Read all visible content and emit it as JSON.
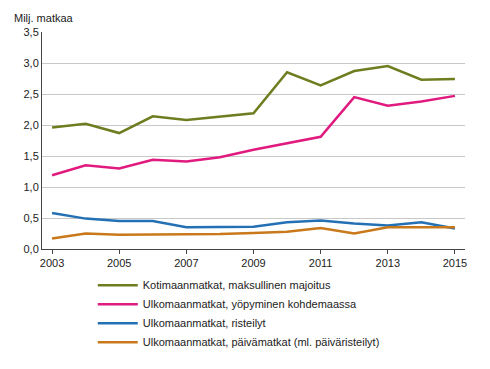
{
  "chart_data": {
    "type": "line",
    "ylabel": "Milj. matkaa",
    "x": [
      2003,
      2004,
      2005,
      2006,
      2007,
      2008,
      2009,
      2010,
      2011,
      2012,
      2013,
      2014,
      2015
    ],
    "xlim": [
      2002.7,
      2015.3
    ],
    "xticks": [
      2003,
      2005,
      2007,
      2009,
      2011,
      2013,
      2015
    ],
    "ylim": [
      0,
      3.5
    ],
    "yticks": [
      {
        "value": 0,
        "label": "0,0"
      },
      {
        "value": 0.5,
        "label": "0,5"
      },
      {
        "value": 1,
        "label": "1,0"
      },
      {
        "value": 1.5,
        "label": "1,5"
      },
      {
        "value": 2,
        "label": "2,0"
      },
      {
        "value": 2.5,
        "label": "2,5"
      },
      {
        "value": 3,
        "label": "3,0"
      },
      {
        "value": 3.5,
        "label": "3,5"
      }
    ],
    "grid": true,
    "legend": "bottom",
    "series": [
      {
        "name": "Kotimaanmatkat, maksullinen majoitus",
        "color": "#6e7d1f",
        "values": [
          1.96,
          2.02,
          1.87,
          2.14,
          2.08,
          2.14,
          2.19,
          2.85,
          2.64,
          2.87,
          2.95,
          2.73,
          2.74
        ]
      },
      {
        "name": "Ulkomaanmatkat, yöpyminen kohdemaassa",
        "color": "#e01a7e",
        "values": [
          1.19,
          1.35,
          1.3,
          1.44,
          1.41,
          1.48,
          1.6,
          1.71,
          1.81,
          2.45,
          2.31,
          2.38,
          2.47
        ]
      },
      {
        "name": "Ulkomaanmatkat, risteilyt",
        "color": "#2470b5",
        "values": [
          0.58,
          0.49,
          0.45,
          0.45,
          0.35,
          0.35,
          0.36,
          0.43,
          0.46,
          0.41,
          0.38,
          0.43,
          0.33
        ]
      },
      {
        "name": "Ulkomaanmatkat, päivämatkat (ml. päiväristeilyt)",
        "color": "#c9781b",
        "values": [
          0.17,
          0.25,
          0.23,
          0.23,
          0.24,
          0.24,
          0.26,
          0.28,
          0.34,
          0.25,
          0.35,
          0.35,
          0.35
        ]
      }
    ]
  }
}
